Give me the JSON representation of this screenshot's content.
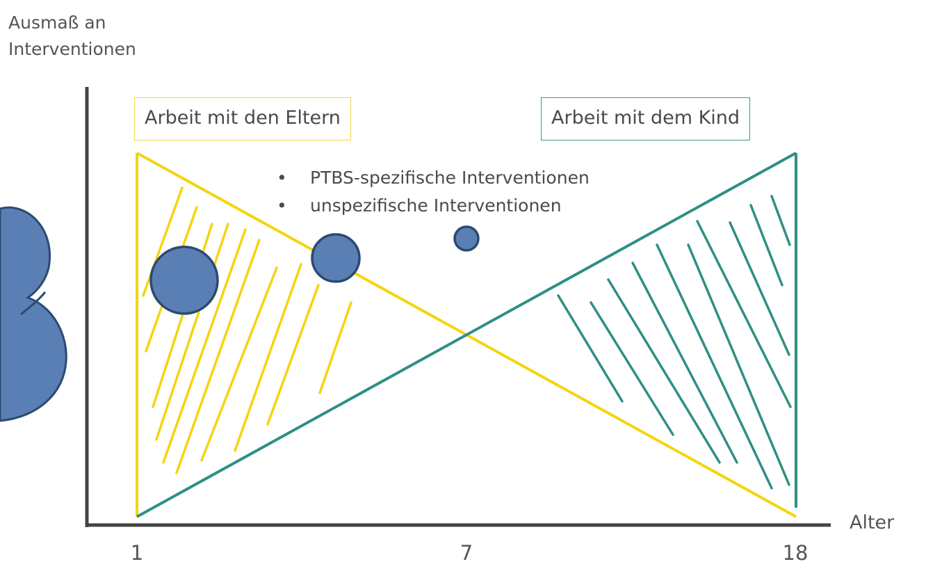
{
  "axes": {
    "y_label_line1": "Ausmaß an",
    "y_label_line2": "Interventionen",
    "x_label": "Alter",
    "x_ticks": [
      "1",
      "7",
      "18"
    ]
  },
  "boxes": {
    "parents": "Arbeit mit den Eltern",
    "child": "Arbeit mit dem Kind"
  },
  "legend": {
    "bullet_symbol": "•",
    "items": [
      "PTBS-spezifische Interventionen",
      "unspezifische Interventionen"
    ]
  },
  "colors": {
    "parents": "#f5d40f",
    "child": "#2f8f84",
    "axis": "#444444",
    "circle_fill": "#5a7fb5",
    "circle_stroke": "#2c4a70"
  },
  "icons": {
    "cloud": "cloud-shape"
  }
}
